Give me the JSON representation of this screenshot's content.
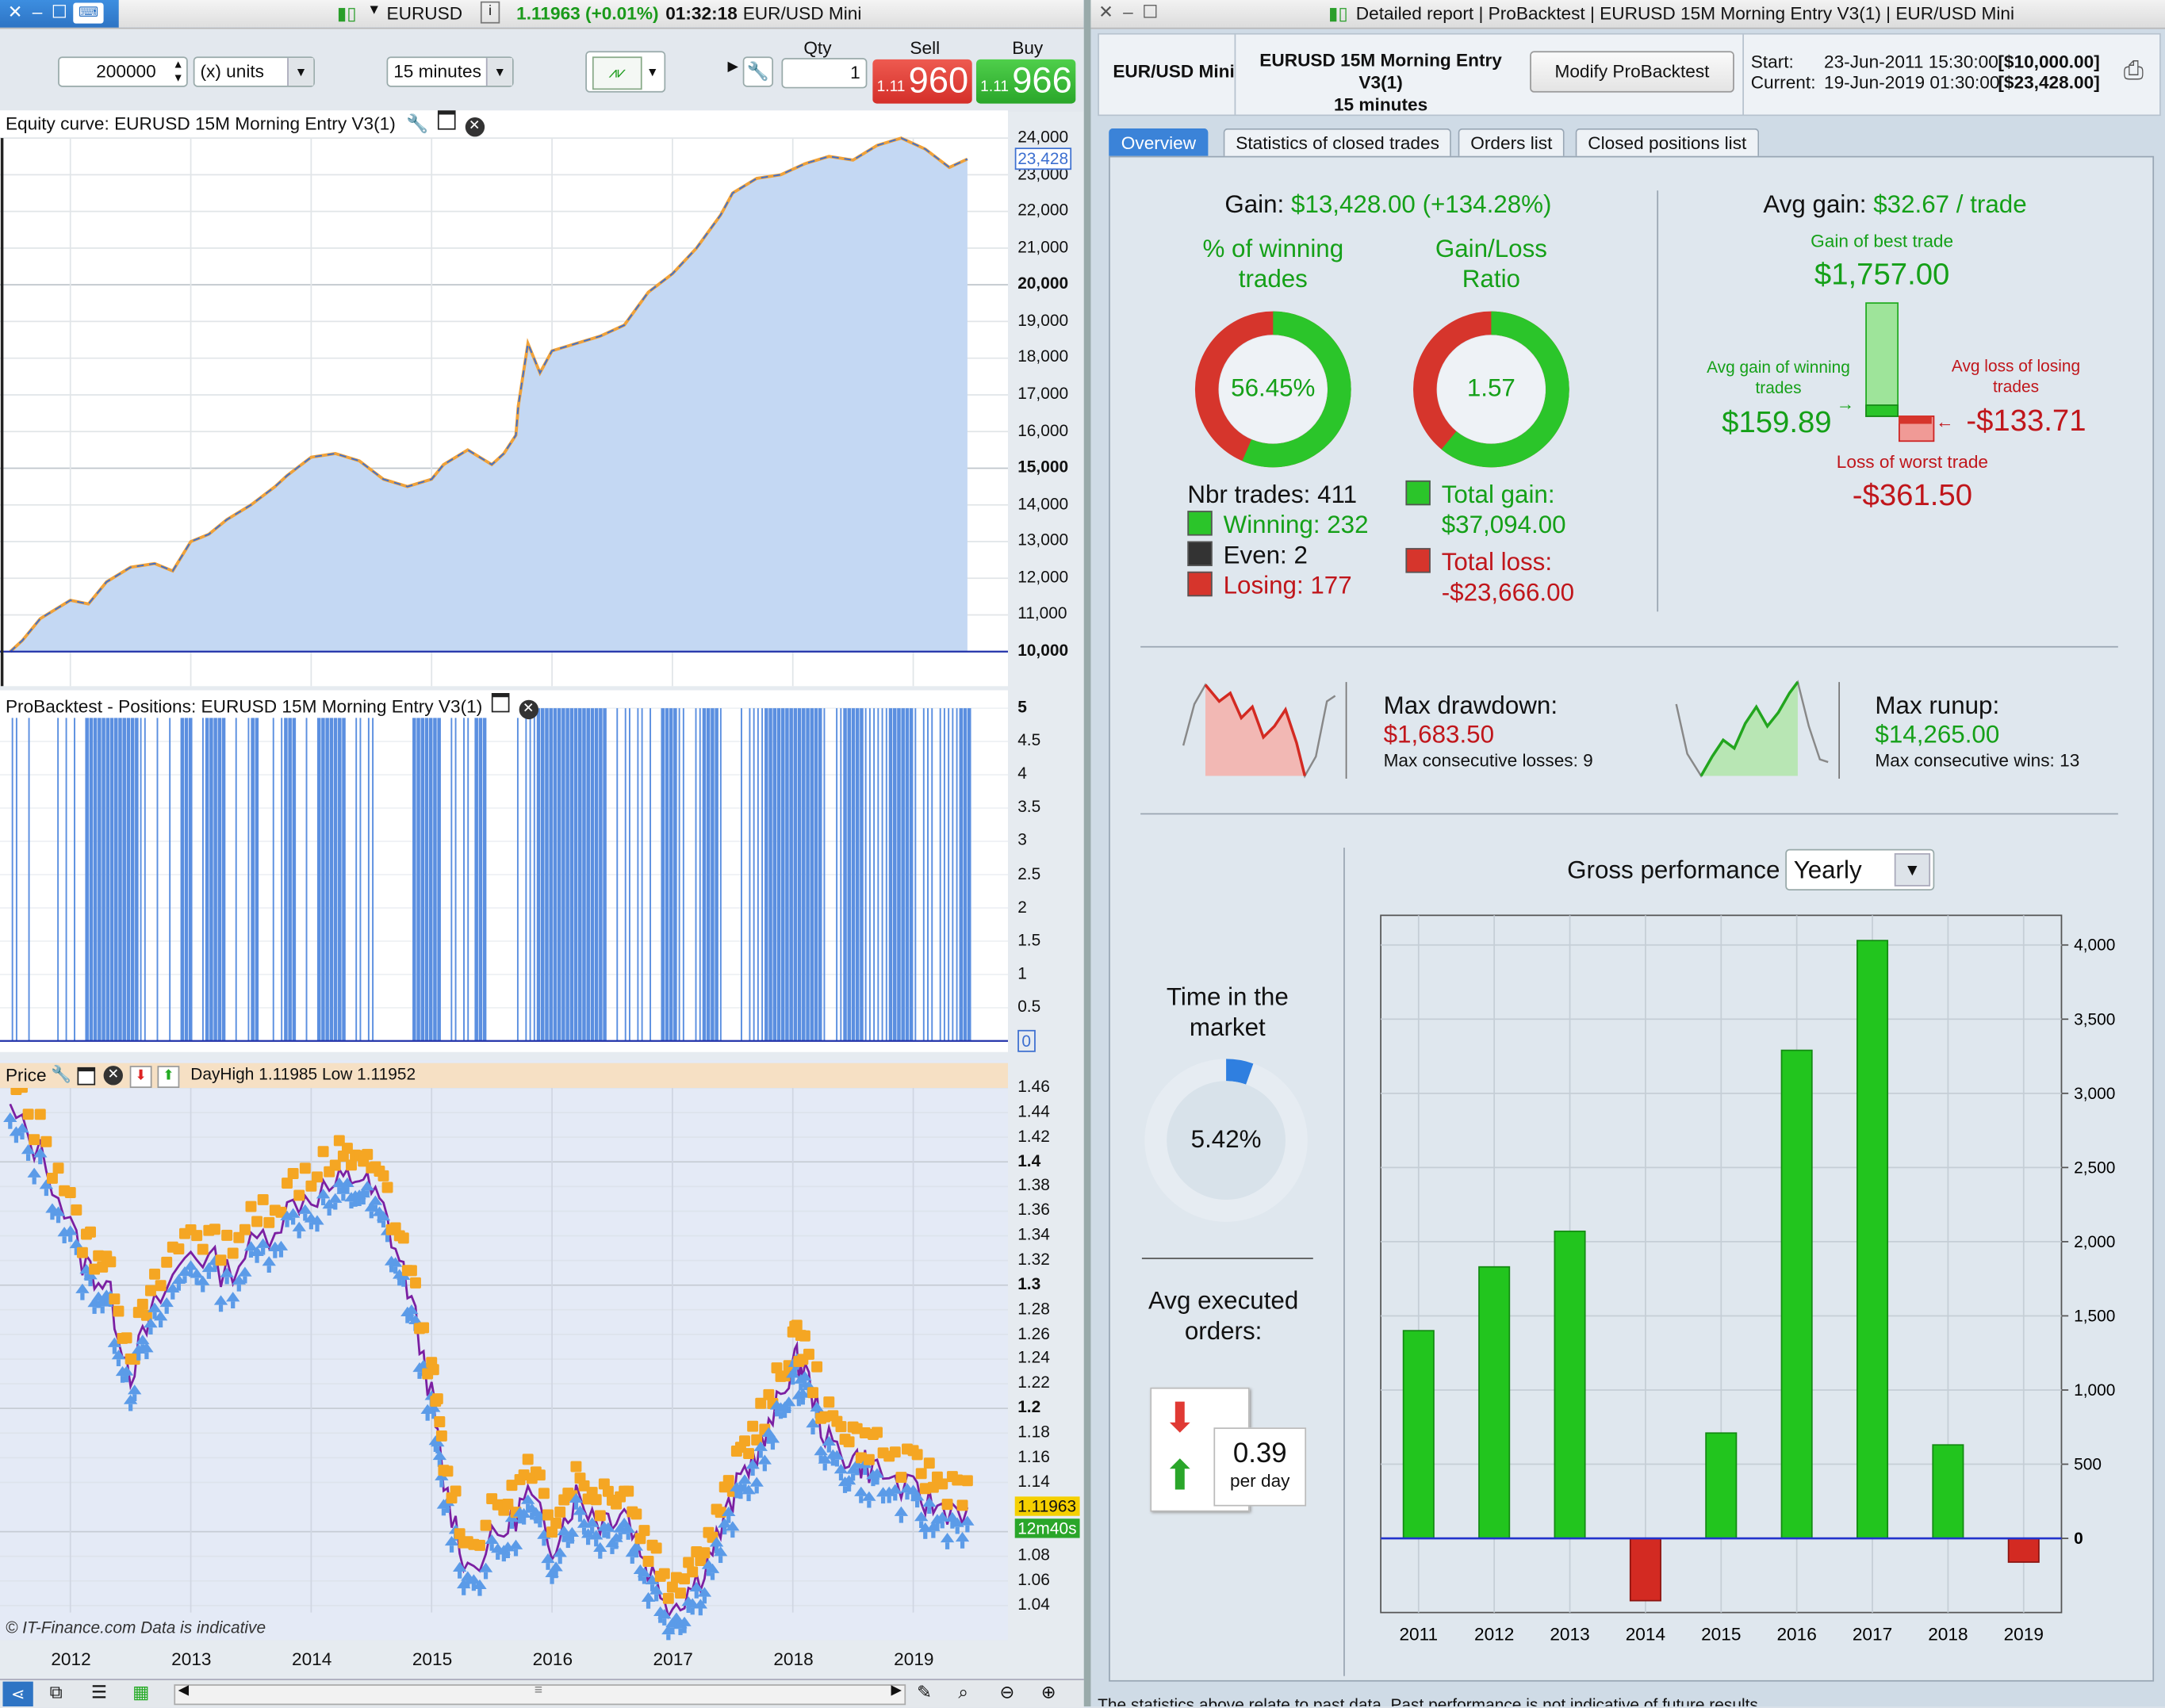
{
  "left_window": {
    "symbol": "EURUSD",
    "quote": "1.11963 (+0.01%)",
    "time": "01:32:18",
    "instrument": "EUR/USD Mini",
    "quantity_value": "200000",
    "units_select": "(x) units",
    "timeframe_select": "15 minutes",
    "qty_label": "Qty",
    "qty_value": "1",
    "sell_label": "Sell",
    "sell_prefix": "1.11",
    "sell_price": "960",
    "buy_label": "Buy",
    "buy_prefix": "1.11",
    "buy_price": "966",
    "equity_panel_title": "Equity curve: EURUSD 15M Morning Entry V3(1)",
    "equity_axis": [
      "24,000",
      "23,000",
      "22,000",
      "21,000",
      "20,000",
      "19,000",
      "18,000",
      "17,000",
      "16,000",
      "15,000",
      "14,000",
      "13,000",
      "12,000",
      "11,000",
      "10,000"
    ],
    "equity_current_label": "23,428",
    "positions_panel_title": "ProBacktest - Positions: EURUSD 15M Morning Entry V3(1)",
    "positions_axis": [
      "5",
      "4.5",
      "4",
      "3.5",
      "3",
      "2.5",
      "2",
      "1.5",
      "1",
      "0.5"
    ],
    "positions_zero_label": "0",
    "price_panel_title": "Price",
    "price_overlay_text": "DayHigh 1.11985 Low 1.11952",
    "price_axis": [
      "1.46",
      "1.44",
      "1.42",
      "1.4",
      "1.38",
      "1.36",
      "1.34",
      "1.32",
      "1.3",
      "1.28",
      "1.26",
      "1.24",
      "1.22",
      "1.2",
      "1.18",
      "1.16",
      "1.14",
      "1.1",
      "1.08",
      "1.06",
      "1.04"
    ],
    "price_current_label": "1.11963",
    "price_countdown_label": "12m40s",
    "watermark": "© IT-Finance.com  Data is indicative",
    "x_axis_years": [
      "2012",
      "2013",
      "2014",
      "2015",
      "2016",
      "2017",
      "2018",
      "2019"
    ],
    "equity_series": {
      "x": [
        2011.5,
        2011.6,
        2011.75,
        2011.9,
        2012.0,
        2012.15,
        2012.3,
        2012.5,
        2012.7,
        2012.85,
        2013.0,
        2013.15,
        2013.3,
        2013.5,
        2013.7,
        2013.8,
        2014.0,
        2014.2,
        2014.4,
        2014.6,
        2014.8,
        2015.0,
        2015.1,
        2015.3,
        2015.5,
        2015.6,
        2015.7,
        2015.72,
        2015.8,
        2015.9,
        2016.0,
        2016.2,
        2016.4,
        2016.6,
        2016.8,
        2017.0,
        2017.2,
        2017.4,
        2017.5,
        2017.7,
        2017.9,
        2018.1,
        2018.3,
        2018.5,
        2018.7,
        2018.9,
        2019.1,
        2019.3,
        2019.45
      ],
      "y": [
        10000,
        10300,
        10900,
        11200,
        11400,
        11300,
        11900,
        12300,
        12400,
        12200,
        13000,
        13200,
        13600,
        14000,
        14500,
        14800,
        15300,
        15400,
        15200,
        14700,
        14500,
        14700,
        15100,
        15500,
        15100,
        15400,
        15900,
        16700,
        18400,
        17600,
        18200,
        18400,
        18600,
        18900,
        19800,
        20300,
        21000,
        21900,
        22500,
        22900,
        23000,
        23300,
        23500,
        23400,
        23800,
        24000,
        23700,
        23200,
        23428
      ]
    },
    "positions_bars_active_fraction": 0.62,
    "price_series": {
      "x": [
        2011.5,
        2011.8,
        2012.1,
        2012.3,
        2012.5,
        2012.7,
        2013.0,
        2013.3,
        2013.6,
        2013.9,
        2014.2,
        2014.4,
        2014.6,
        2014.8,
        2015.0,
        2015.1,
        2015.3,
        2015.6,
        2015.8,
        2016.0,
        2016.2,
        2016.4,
        2016.6,
        2016.8,
        2017.0,
        2017.2,
        2017.4,
        2017.6,
        2017.8,
        2018.0,
        2018.1,
        2018.3,
        2018.5,
        2018.7,
        2019.0,
        2019.2,
        2019.45
      ],
      "y": [
        1.44,
        1.4,
        1.32,
        1.3,
        1.23,
        1.28,
        1.33,
        1.31,
        1.34,
        1.37,
        1.38,
        1.39,
        1.36,
        1.3,
        1.21,
        1.14,
        1.07,
        1.1,
        1.13,
        1.09,
        1.13,
        1.11,
        1.12,
        1.07,
        1.04,
        1.06,
        1.1,
        1.15,
        1.18,
        1.24,
        1.23,
        1.17,
        1.16,
        1.15,
        1.13,
        1.12,
        1.11963
      ]
    }
  },
  "right_window": {
    "title": "Detailed report | ProBacktest | EURUSD 15M Morning Entry V3(1) | EUR/USD Mini",
    "instrument": "EUR/USD Mini",
    "strategy_name": "EURUSD 15M Morning Entry V3(1)",
    "strategy_timeframe": "15 minutes",
    "modify_button": "Modify ProBacktest",
    "start_label": "Start:",
    "start_value": "23-Jun-2011 15:30:00",
    "start_capital": "[$10,000.00]",
    "current_label": "Current:",
    "current_value": "19-Jun-2019 01:30:00",
    "current_capital": "[$23,428.00]",
    "tabs": [
      "Overview",
      "Statistics of closed trades",
      "Orders list",
      "Closed positions list"
    ],
    "gain_label": "Gain:",
    "gain_value": "$13,428.00 (+134.28%)",
    "winning_pct_label": "% of winning trades",
    "winning_pct_value": "56.45%",
    "winning_pct": 0.5645,
    "ratio_label": "Gain/Loss Ratio",
    "ratio_value": "1.57",
    "ratio_fraction": 0.61,
    "nbr_trades": "Nbr trades: 411",
    "winning": "Winning: 232",
    "even": "Even: 2",
    "losing": "Losing: 177",
    "total_gain_label": "Total gain:",
    "total_gain_value": "$37,094.00",
    "total_loss_label": "Total loss:",
    "total_loss_value": "-$23,666.00",
    "avg_gain_label": "Avg gain:",
    "avg_gain_value": "$32.67 / trade",
    "best_trade_label": "Gain of best trade",
    "best_trade_value": "$1,757.00",
    "avg_win_label": "Avg gain of winning trades",
    "avg_win_value": "$159.89",
    "avg_loss_label": "Avg loss of losing trades",
    "avg_loss_value": "-$133.71",
    "worst_trade_label": "Loss of worst trade",
    "worst_trade_value": "-$361.50",
    "max_drawdown_label": "Max drawdown:",
    "max_drawdown_value": "$1,683.50",
    "max_consec_losses": "Max consecutive losses: 9",
    "max_runup_label": "Max runup:",
    "max_runup_value": "$14,265.00",
    "max_consec_wins": "Max consecutive wins: 13",
    "time_market_label": "Time in the market",
    "time_market_value": "5.42%",
    "time_market_fraction": 0.0542,
    "avg_orders_label": "Avg executed orders:",
    "avg_orders_value": "0.39",
    "avg_orders_unit": "per day",
    "gross_perf_label": "Gross performance",
    "gross_perf_select": "Yearly",
    "footer_text": "The statistics above relate to past data. Past performance is not indicative of future results."
  },
  "chart_data": {
    "type": "bar",
    "categories": [
      "2011",
      "2012",
      "2013",
      "2014",
      "2015",
      "2016",
      "2017",
      "2018",
      "2019"
    ],
    "values": [
      1400,
      1830,
      2070,
      -420,
      710,
      3290,
      4030,
      630,
      -160
    ],
    "ylim": [
      -500,
      4200
    ],
    "yticks": [
      "4,000",
      "3,500",
      "3,000",
      "2,500",
      "2,000",
      "1,500",
      "1,000",
      "500",
      "0"
    ],
    "ytick_values": [
      4000,
      3500,
      3000,
      2500,
      2000,
      1500,
      1000,
      500,
      0
    ],
    "grid": true,
    "colors": {
      "positive": "#22c51e",
      "negative": "#d32a22",
      "zero_line": "#2233cc"
    }
  },
  "colors": {
    "accent": "#3b83d8",
    "sell": "#e03a34",
    "buy": "#34b839",
    "gain": "#15a018",
    "loss": "#c0161b"
  }
}
